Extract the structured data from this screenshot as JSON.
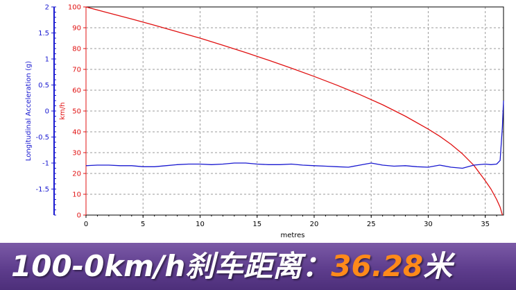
{
  "chart_data": {
    "type": "line",
    "xlabel": "metres",
    "x_ticks": [
      0,
      5,
      10,
      15,
      20,
      25,
      30,
      35
    ],
    "xlim": [
      0,
      36.6
    ],
    "y_right_axis_label_km": "km/h",
    "ylabel_left": "Longitudinal Acceleration (g)",
    "ylabel_speed": "km/h",
    "ylim_speed": [
      0,
      100
    ],
    "speed_ticks": [
      0,
      10,
      20,
      30,
      40,
      50,
      60,
      70,
      80,
      90,
      100
    ],
    "ylim_accel": [
      -2,
      2
    ],
    "accel_ticks": [
      "-1.5",
      "-1",
      "-0.5",
      "0",
      "0.5",
      "1",
      "1.5",
      "2"
    ],
    "grid": true,
    "series": [
      {
        "axis": "speed",
        "color": "#e01010",
        "x": [
          0,
          2,
          4,
          6,
          8,
          10,
          12,
          14,
          16,
          18,
          20,
          22,
          24,
          26,
          28,
          30,
          31,
          32,
          33,
          34,
          35,
          35.5,
          36,
          36.3,
          36.5
        ],
        "y": [
          100,
          97.1,
          94.2,
          91.2,
          88.1,
          85,
          81.6,
          78.1,
          74.4,
          70.6,
          66.6,
          62.4,
          57.9,
          53,
          47.5,
          41.3,
          37.9,
          34,
          29.4,
          23.9,
          16.5,
          12.5,
          7.5,
          3.8,
          0
        ]
      },
      {
        "axis": "accel",
        "color": "#1818d0",
        "x": [
          0,
          1,
          2,
          3,
          4,
          5,
          6,
          7,
          8,
          9,
          10,
          11,
          12,
          13,
          14,
          15,
          16,
          17,
          18,
          19,
          20,
          21,
          22,
          23,
          24,
          25,
          26,
          27,
          28,
          29,
          30,
          31,
          32,
          33,
          34,
          35,
          35.5,
          36,
          36.3,
          36.5,
          36.6
        ],
        "y": [
          -1.05,
          -1.04,
          -1.04,
          -1.05,
          -1.05,
          -1.07,
          -1.07,
          -1.05,
          -1.03,
          -1.02,
          -1.02,
          -1.03,
          -1.02,
          -1.0,
          -1.0,
          -1.02,
          -1.03,
          -1.03,
          -1.02,
          -1.04,
          -1.05,
          -1.06,
          -1.07,
          -1.08,
          -1.04,
          -1.0,
          -1.04,
          -1.06,
          -1.05,
          -1.07,
          -1.08,
          -1.04,
          -1.08,
          -1.1,
          -1.04,
          -1.02,
          -1.03,
          -1.02,
          -0.95,
          -0.3,
          0.2
        ]
      }
    ]
  },
  "banner": {
    "label": "100-0km/h刹车距离：",
    "value": "36.28",
    "unit": "米"
  },
  "colors": {
    "speed_axis": "#e01010",
    "accel_axis": "#1818d0"
  }
}
